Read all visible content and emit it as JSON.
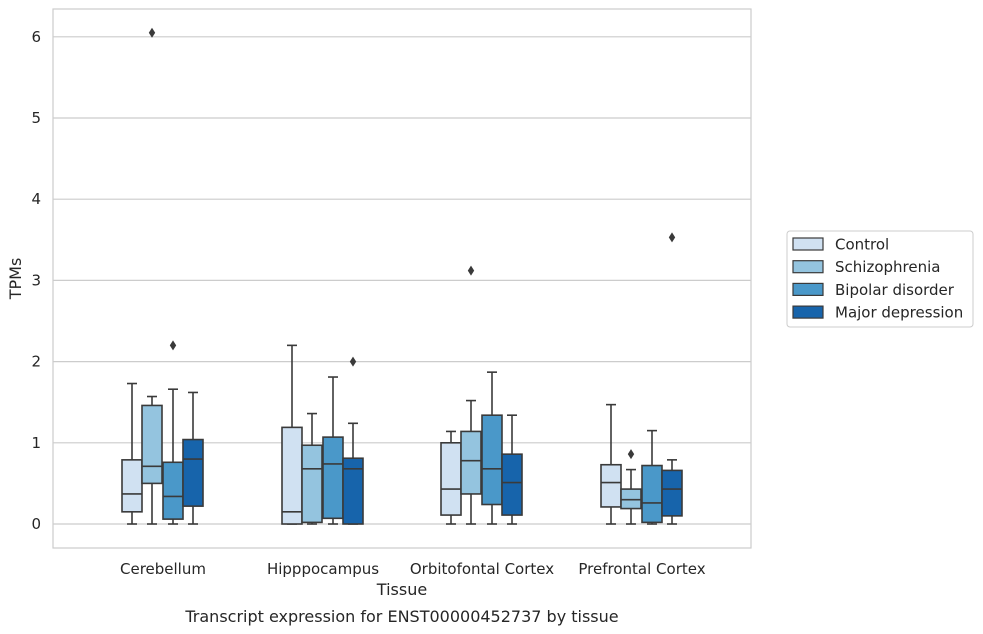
{
  "caption": "Transcript expression for ENST00000452737 by tissue",
  "chart_data": {
    "type": "box",
    "title": "",
    "xlabel": "Tissue",
    "ylabel": "TPMs",
    "ylim": [
      -0.3,
      6.35
    ],
    "yticks": [
      0,
      1,
      2,
      3,
      4,
      5,
      6
    ],
    "grid": "horizontal",
    "legend_position": "right",
    "categories": [
      "Cerebellum",
      "Hipppocampus",
      "Orbitofontal Cortex",
      "Prefrontal Cortex"
    ],
    "series": [
      {
        "name": "Control",
        "color": "#d0e1f2",
        "boxes": [
          {
            "whisker_low": 0,
            "q1": 0.15,
            "median": 0.37,
            "q3": 0.79,
            "whisker_high": 1.73,
            "outliers": []
          },
          {
            "whisker_low": 0,
            "q1": 0,
            "median": 0.15,
            "q3": 1.19,
            "whisker_high": 2.2,
            "outliers": []
          },
          {
            "whisker_low": 0,
            "q1": 0.11,
            "median": 0.43,
            "q3": 1.0,
            "whisker_high": 1.14,
            "outliers": []
          },
          {
            "whisker_low": 0,
            "q1": 0.21,
            "median": 0.51,
            "q3": 0.73,
            "whisker_high": 1.47,
            "outliers": []
          }
        ]
      },
      {
        "name": "Schizophrenia",
        "color": "#94c4df",
        "boxes": [
          {
            "whisker_low": 0,
            "q1": 0.5,
            "median": 0.71,
            "q3": 1.46,
            "whisker_high": 1.57,
            "outliers": [
              6.05
            ]
          },
          {
            "whisker_low": 0,
            "q1": 0.02,
            "median": 0.68,
            "q3": 0.97,
            "whisker_high": 1.36,
            "outliers": []
          },
          {
            "whisker_low": 0,
            "q1": 0.37,
            "median": 0.78,
            "q3": 1.14,
            "whisker_high": 1.52,
            "outliers": [
              3.12
            ]
          },
          {
            "whisker_low": 0,
            "q1": 0.19,
            "median": 0.3,
            "q3": 0.43,
            "whisker_high": 0.67,
            "outliers": [
              0.86
            ]
          }
        ]
      },
      {
        "name": "Bipolar disorder",
        "color": "#4a98c9",
        "boxes": [
          {
            "whisker_low": 0,
            "q1": 0.06,
            "median": 0.34,
            "q3": 0.76,
            "whisker_high": 1.66,
            "outliers": [
              2.2
            ]
          },
          {
            "whisker_low": 0,
            "q1": 0.07,
            "median": 0.74,
            "q3": 1.07,
            "whisker_high": 1.81,
            "outliers": []
          },
          {
            "whisker_low": 0,
            "q1": 0.24,
            "median": 0.68,
            "q3": 1.34,
            "whisker_high": 1.87,
            "outliers": []
          },
          {
            "whisker_low": 0,
            "q1": 0.02,
            "median": 0.26,
            "q3": 0.72,
            "whisker_high": 1.15,
            "outliers": []
          }
        ]
      },
      {
        "name": "Major depression",
        "color": "#1764ab",
        "boxes": [
          {
            "whisker_low": 0,
            "q1": 0.22,
            "median": 0.8,
            "q3": 1.04,
            "whisker_high": 1.62,
            "outliers": []
          },
          {
            "whisker_low": 0,
            "q1": 0,
            "median": 0.68,
            "q3": 0.81,
            "whisker_high": 1.24,
            "outliers": [
              2.0
            ]
          },
          {
            "whisker_low": 0,
            "q1": 0.11,
            "median": 0.51,
            "q3": 0.86,
            "whisker_high": 1.34,
            "outliers": []
          },
          {
            "whisker_low": 0,
            "q1": 0.1,
            "median": 0.43,
            "q3": 0.66,
            "whisker_high": 0.79,
            "outliers": [
              3.53
            ]
          }
        ]
      }
    ]
  }
}
